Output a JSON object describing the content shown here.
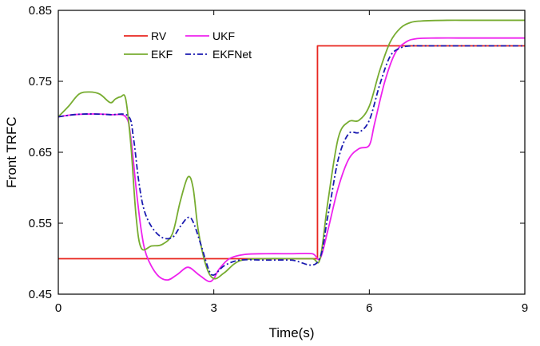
{
  "chart_data": {
    "type": "line",
    "xlabel": "Time(s)",
    "ylabel": "Front TRFC",
    "xlim": [
      0,
      9
    ],
    "ylim": [
      0.45,
      0.85
    ],
    "xticks": [
      {
        "value": 0,
        "label": "0"
      },
      {
        "value": 3,
        "label": "3"
      },
      {
        "value": 6,
        "label": "6"
      },
      {
        "value": 9,
        "label": "9"
      }
    ],
    "yticks": [
      {
        "value": 0.45,
        "label": "0.45"
      },
      {
        "value": 0.55,
        "label": "0.55"
      },
      {
        "value": 0.65,
        "label": "0.65"
      },
      {
        "value": 0.75,
        "label": "0.75"
      },
      {
        "value": 0.85,
        "label": "0.85"
      }
    ],
    "grid": false,
    "legend_position": "top-left",
    "series": [
      {
        "name": "RV",
        "color": "#e8261f",
        "dash": "solid",
        "x": [
          0,
          5.0,
          5.0,
          9
        ],
        "y": [
          0.5,
          0.5,
          0.8,
          0.8
        ]
      },
      {
        "name": "UKF",
        "color": "#ee22ee",
        "dash": "solid",
        "x": [
          0,
          0.3,
          0.7,
          1.0,
          1.3,
          1.4,
          1.5,
          1.6,
          1.7,
          1.9,
          2.1,
          2.3,
          2.5,
          2.7,
          2.9,
          3.0,
          3.1,
          3.3,
          3.6,
          4.0,
          4.5,
          4.9,
          5.05,
          5.2,
          5.4,
          5.6,
          5.8,
          6.0,
          6.1,
          6.3,
          6.5,
          6.7,
          6.9,
          7.3,
          8.0,
          9.0
        ],
        "y": [
          0.7,
          0.703,
          0.704,
          0.703,
          0.7,
          0.67,
          0.6,
          0.54,
          0.505,
          0.478,
          0.47,
          0.478,
          0.488,
          0.478,
          0.468,
          0.472,
          0.485,
          0.5,
          0.506,
          0.507,
          0.507,
          0.507,
          0.5,
          0.54,
          0.6,
          0.64,
          0.655,
          0.66,
          0.69,
          0.75,
          0.79,
          0.805,
          0.81,
          0.811,
          0.811,
          0.811
        ]
      },
      {
        "name": "EKF",
        "color": "#77ac30",
        "dash": "solid",
        "x": [
          0,
          0.2,
          0.4,
          0.6,
          0.8,
          1.0,
          1.1,
          1.2,
          1.3,
          1.4,
          1.5,
          1.6,
          1.8,
          2.0,
          2.2,
          2.35,
          2.5,
          2.6,
          2.7,
          2.85,
          3.0,
          3.2,
          3.5,
          4.0,
          4.5,
          4.9,
          5.05,
          5.2,
          5.4,
          5.6,
          5.8,
          6.0,
          6.2,
          6.4,
          6.6,
          6.8,
          7.0,
          7.5,
          8.0,
          9.0
        ],
        "y": [
          0.7,
          0.715,
          0.732,
          0.735,
          0.732,
          0.72,
          0.725,
          0.728,
          0.725,
          0.66,
          0.56,
          0.515,
          0.518,
          0.52,
          0.535,
          0.58,
          0.615,
          0.6,
          0.54,
          0.49,
          0.472,
          0.48,
          0.497,
          0.5,
          0.5,
          0.5,
          0.5,
          0.58,
          0.67,
          0.693,
          0.695,
          0.715,
          0.765,
          0.805,
          0.825,
          0.833,
          0.835,
          0.836,
          0.836,
          0.836
        ]
      },
      {
        "name": "EKFNet",
        "color": "#1a1ab0",
        "dash": "dashdot",
        "x": [
          0,
          0.3,
          0.6,
          1.0,
          1.35,
          1.45,
          1.55,
          1.65,
          1.8,
          2.0,
          2.2,
          2.35,
          2.5,
          2.6,
          2.75,
          2.9,
          3.0,
          3.2,
          3.5,
          4.0,
          4.5,
          5.0,
          5.2,
          5.4,
          5.6,
          5.8,
          6.0,
          6.2,
          6.4,
          6.6,
          6.8,
          7.0,
          7.5,
          8.0,
          9.0
        ],
        "y": [
          0.7,
          0.703,
          0.704,
          0.703,
          0.701,
          0.67,
          0.61,
          0.57,
          0.545,
          0.53,
          0.53,
          0.545,
          0.558,
          0.552,
          0.52,
          0.485,
          0.477,
          0.49,
          0.498,
          0.498,
          0.498,
          0.495,
          0.56,
          0.64,
          0.676,
          0.678,
          0.695,
          0.745,
          0.785,
          0.797,
          0.8,
          0.8,
          0.8,
          0.8,
          0.8
        ]
      }
    ]
  }
}
